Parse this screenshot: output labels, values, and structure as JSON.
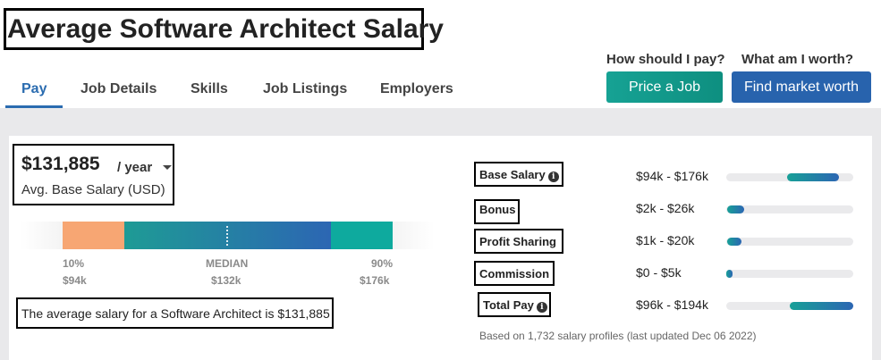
{
  "page_title": "Average Software Architect Salary",
  "tabs": [
    {
      "label": "Pay",
      "active": true
    },
    {
      "label": "Job Details",
      "active": false
    },
    {
      "label": "Skills",
      "active": false
    },
    {
      "label": "Job Listings",
      "active": false
    },
    {
      "label": "Employers",
      "active": false
    }
  ],
  "cta": {
    "price_question": "How should I pay?",
    "price_button": "Price a Job",
    "worth_question": "What am I worth?",
    "worth_button": "Find market worth"
  },
  "salary": {
    "amount": "$131,885",
    "unit": "/ year",
    "caption": "Avg. Base Salary (USD)"
  },
  "range": {
    "p10_label": "10%",
    "p10_value": "$94k",
    "median_label": "MEDIAN",
    "median_value": "$132k",
    "p90_label": "90%",
    "p90_value": "$176k"
  },
  "avg_sentence": "The average salary for a Software Architect is $131,885",
  "compensation": [
    {
      "label": "Base Salary",
      "info": true,
      "range": "$94k - $176k",
      "fill_start": 0.48,
      "fill_end": 0.89
    },
    {
      "label": "Bonus",
      "info": false,
      "range": "$2k - $26k",
      "fill_start": 0.01,
      "fill_end": 0.14
    },
    {
      "label": "Profit Sharing",
      "info": false,
      "range": "$1k - $20k",
      "fill_start": 0.01,
      "fill_end": 0.12
    },
    {
      "label": "Commission",
      "info": false,
      "range": "$0 - $5k",
      "fill_start": 0.0,
      "fill_end": 0.05
    },
    {
      "label": "Total Pay",
      "info": true,
      "range": "$96k - $194k",
      "fill_start": 0.5,
      "fill_end": 1.0
    }
  ],
  "footnote": "Based on 1,732 salary profiles (last updated Dec 06 2022)",
  "colors": {
    "accent_blue": "#2b6cb0",
    "teal_button": "#16a294",
    "market_button": "#2863ad",
    "p10_segment": "#f7a673",
    "p90_segment": "#0eaa9e"
  }
}
